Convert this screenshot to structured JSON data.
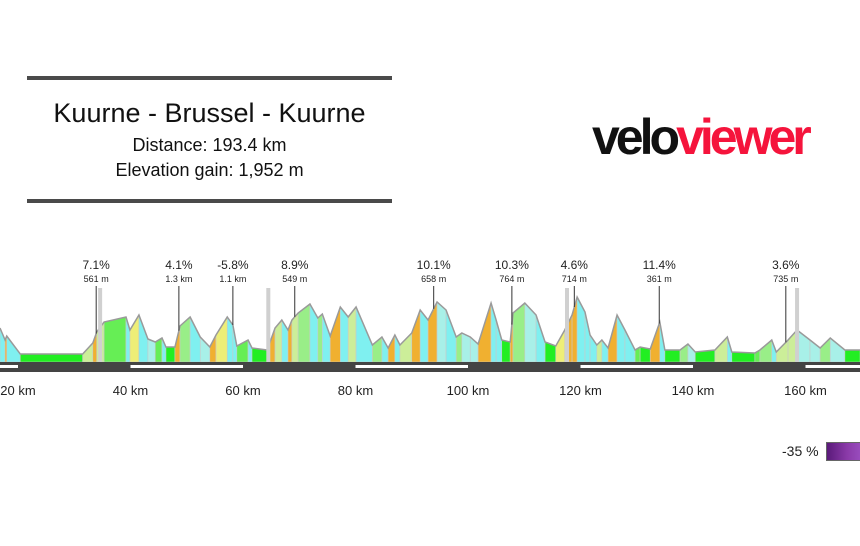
{
  "header": {
    "title": "Kuurne - Brussel - Kuurne",
    "distance": "Distance: 193.4 km",
    "elevation_gain": "Elevation gain: 1,952 m"
  },
  "logo": {
    "part1": "velo",
    "part2": "viewer",
    "color1": "#111111",
    "color2": "#f5143c"
  },
  "legend": {
    "min_label": "-35 %"
  },
  "chart_data": {
    "type": "area",
    "title": "",
    "xlabel": "",
    "ylabel": "",
    "x_unit": "km",
    "xlim": [
      16.8,
      169.7
    ],
    "x_ticks": [
      20,
      40,
      60,
      80,
      100,
      120,
      140,
      160
    ],
    "x_tick_labels": [
      "20 km",
      "40 km",
      "60 km",
      "80 km",
      "100 km",
      "120 km",
      "140 km",
      "160 km"
    ],
    "grid": false,
    "coloring": "segment fill colored by gradient (downhill cyan, flat green, steep yellow/orange)",
    "profile_km": [
      16.8,
      17.7,
      18.0,
      20.4,
      31.5,
      33.3,
      34.0,
      35.3,
      39.2,
      39.9,
      41.5,
      43.1,
      44.4,
      45.6,
      46.3,
      47.9,
      48.8,
      50.6,
      52.4,
      54.1,
      55.2,
      57.2,
      58.2,
      58.9,
      60.9,
      61.6,
      64.3,
      65.7,
      66.9,
      68.0,
      68.7,
      69.8,
      71.9,
      73.3,
      74.1,
      75.5,
      77.3,
      78.7,
      80.1,
      83.0,
      84.7,
      85.8,
      87.0,
      87.9,
      90.0,
      91.5,
      92.9,
      94.5,
      96.1,
      97.9,
      98.9,
      100.4,
      101.8,
      104.1,
      105.0,
      106.0,
      107.5,
      108.0,
      110.1,
      112.1,
      113.7,
      115.6,
      117.2,
      118.5,
      119.4,
      120.8,
      121.7,
      122.9,
      123.8,
      124.9,
      126.5,
      127.9,
      129.7,
      130.6,
      132.4,
      134.1,
      135.0,
      137.7,
      139.1,
      140.4,
      143.9,
      146.1,
      146.9,
      151.0,
      151.9,
      154.0,
      154.8,
      156.9,
      158.5,
      160.8,
      162.6,
      164.4,
      167.0,
      169.7
    ],
    "profile_elev_m": [
      51,
      33,
      39,
      12,
      12,
      28.5,
      45,
      60,
      67.5,
      48,
      70.5,
      34.5,
      30,
      36,
      22.5,
      22.5,
      54,
      67.5,
      37.5,
      22.5,
      40.5,
      67.5,
      55.5,
      24,
      33,
      21,
      18,
      51,
      63,
      48,
      63,
      73.5,
      87,
      66,
      72,
      39,
      82.5,
      67.5,
      82.5,
      25.5,
      37.5,
      21,
      40.5,
      25.5,
      43.5,
      78,
      63,
      90,
      78,
      37.5,
      43.5,
      37.5,
      27,
      88.5,
      63,
      33,
      30,
      73.5,
      88.5,
      70.5,
      30,
      24,
      48,
      70.5,
      97.5,
      75,
      40.5,
      25.5,
      33,
      21,
      70.5,
      48,
      18,
      22.5,
      19.5,
      60,
      18,
      18,
      27,
      15,
      18,
      37.5,
      15,
      13.5,
      18,
      33,
      15,
      33,
      48,
      33,
      21,
      36,
      18,
      18
    ],
    "climbs": [
      {
        "km": 15.4,
        "gradient": "%",
        "length": "m"
      },
      {
        "km": 33.9,
        "gradient": "7.1%",
        "length": "561 m"
      },
      {
        "km": 48.6,
        "gradient": "4.1%",
        "length": "1.3 km"
      },
      {
        "km": 58.2,
        "gradient": "-5.8%",
        "length": "1.1 km"
      },
      {
        "km": 69.2,
        "gradient": "8.9%",
        "length": "549 m"
      },
      {
        "km": 93.9,
        "gradient": "10.1%",
        "length": "658 m"
      },
      {
        "km": 107.8,
        "gradient": "10.3%",
        "length": "764 m"
      },
      {
        "km": 118.9,
        "gradient": "4.6%",
        "length": "714 m"
      },
      {
        "km": 134.0,
        "gradient": "11.4%",
        "length": "361 m"
      },
      {
        "km": 156.5,
        "gradient": "3.6%",
        "length": "735 m"
      }
    ],
    "markers_km": [
      34.6,
      64.5,
      117.6,
      158.5
    ]
  }
}
